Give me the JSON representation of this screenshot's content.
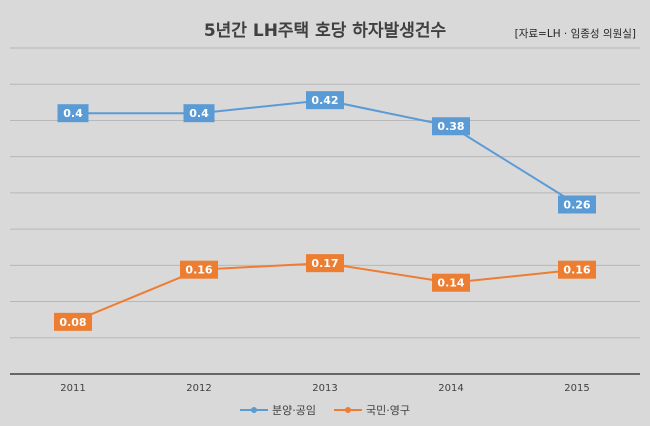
{
  "chart_data": {
    "type": "line",
    "title": "5년간 LH주택 호당 하자발생건수",
    "source": "[자료=LH · 임종성 의원실]",
    "categories": [
      "2011",
      "2012",
      "2013",
      "2014",
      "2015"
    ],
    "series": [
      {
        "name": "분양·공임",
        "values": [
          0.4,
          0.4,
          0.42,
          0.38,
          0.26
        ],
        "color": "#5b9bd5"
      },
      {
        "name": "국민·영구",
        "values": [
          0.08,
          0.16,
          0.17,
          0.14,
          0.16
        ],
        "color": "#ed7d31"
      }
    ],
    "ylim": [
      0,
      0.5
    ],
    "grid": true,
    "legend_position": "bottom",
    "data_labels": true
  }
}
